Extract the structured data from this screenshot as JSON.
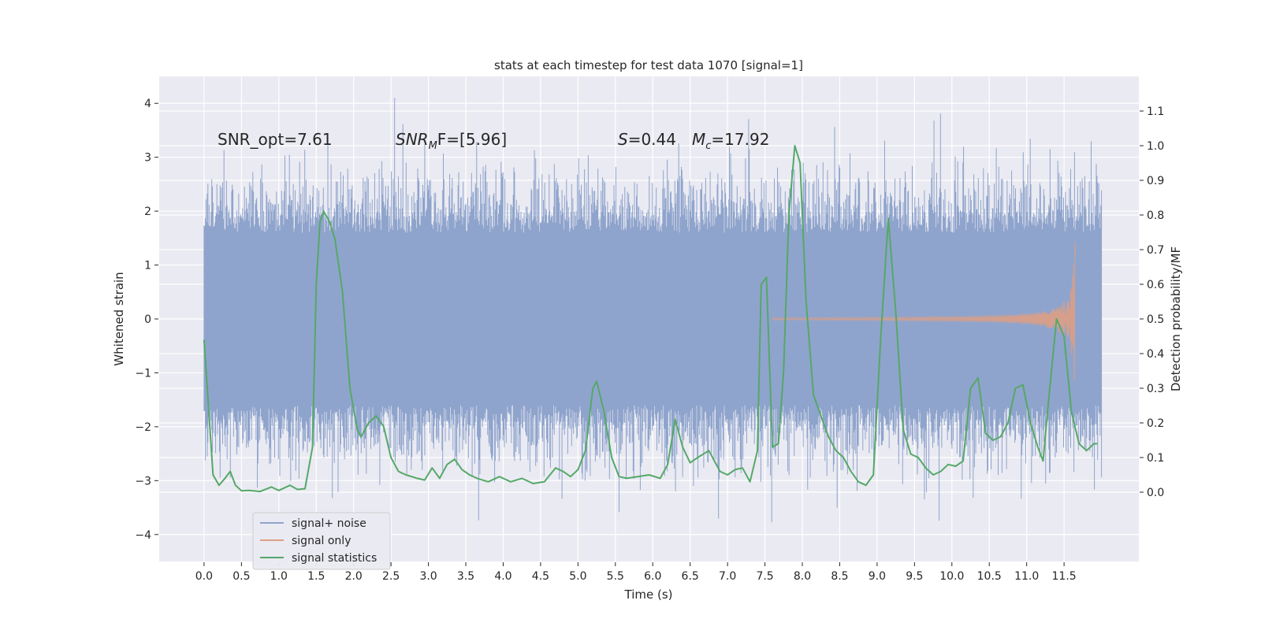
{
  "chart_data": {
    "type": "line",
    "title": "stats at each timestep for test data 1070 [signal=1]",
    "xlabel": "Time (s)",
    "ylabel_left": "Whitened strain",
    "ylabel_right": "Detection probability/MF",
    "xlim": [
      -0.6,
      12.5
    ],
    "ylim_left": [
      -4.5,
      4.5
    ],
    "ylim_right": [
      -0.2,
      1.2
    ],
    "x_ticks": [
      0.0,
      0.5,
      1.0,
      1.5,
      2.0,
      2.5,
      3.0,
      3.5,
      4.0,
      4.5,
      5.0,
      5.5,
      6.0,
      6.5,
      7.0,
      7.5,
      8.0,
      8.5,
      9.0,
      9.5,
      10.0,
      10.5,
      11.0,
      11.5
    ],
    "x_tick_labels": [
      "0.0",
      "0.5",
      "1.0",
      "1.5",
      "2.0",
      "2.5",
      "3.0",
      "3.5",
      "4.0",
      "4.5",
      "5.0",
      "5.5",
      "6.0",
      "6.5",
      "7.0",
      "7.5",
      "8.0",
      "8.5",
      "9.0",
      "9.5",
      "10.0",
      "10.5",
      "11.0",
      "11.5"
    ],
    "y_left_ticks": [
      -4,
      -3,
      -2,
      -1,
      0,
      1,
      2,
      3,
      4
    ],
    "y_left_tick_labels": [
      "−4",
      "−3",
      "−2",
      "−1",
      "0",
      "1",
      "2",
      "3",
      "4"
    ],
    "y_right_ticks": [
      0.0,
      0.1,
      0.2,
      0.3,
      0.4,
      0.5,
      0.6,
      0.7,
      0.8,
      0.9,
      1.0,
      1.1
    ],
    "y_right_tick_labels": [
      "0.0",
      "0.1",
      "0.2",
      "0.3",
      "0.4",
      "0.5",
      "0.6",
      "0.7",
      "0.8",
      "0.9",
      "1.0",
      "1.1"
    ],
    "noise_envelope": {
      "name": "signal+ noise",
      "t_start": 0.0,
      "t_end": 12.0,
      "typical_min": -1.6,
      "typical_max": 1.6,
      "peak_min": -4.0,
      "peak_max": 4.1
    },
    "signal_only": {
      "name": "signal only",
      "t_start": 7.6,
      "t_merge": 11.65,
      "amplitude_start": 0.02,
      "amplitude_peak": 1.75
    },
    "statistics": {
      "name": "signal statistics",
      "x": [
        0.0,
        0.12,
        0.2,
        0.28,
        0.35,
        0.42,
        0.5,
        0.6,
        0.75,
        0.9,
        1.0,
        1.15,
        1.25,
        1.35,
        1.45,
        1.5,
        1.55,
        1.6,
        1.68,
        1.75,
        1.85,
        1.95,
        2.05,
        2.1,
        2.2,
        2.3,
        2.4,
        2.5,
        2.6,
        2.7,
        2.85,
        2.95,
        3.05,
        3.15,
        3.25,
        3.35,
        3.45,
        3.55,
        3.65,
        3.8,
        3.95,
        4.1,
        4.25,
        4.4,
        4.55,
        4.7,
        4.8,
        4.9,
        5.0,
        5.1,
        5.2,
        5.25,
        5.35,
        5.45,
        5.55,
        5.65,
        5.8,
        5.95,
        6.1,
        6.2,
        6.3,
        6.4,
        6.5,
        6.6,
        6.75,
        6.9,
        7.0,
        7.1,
        7.2,
        7.3,
        7.4,
        7.45,
        7.52,
        7.6,
        7.68,
        7.75,
        7.82,
        7.9,
        7.97,
        8.05,
        8.15,
        8.25,
        8.35,
        8.45,
        8.55,
        8.65,
        8.75,
        8.85,
        8.95,
        9.05,
        9.15,
        9.25,
        9.35,
        9.45,
        9.55,
        9.65,
        9.75,
        9.85,
        9.95,
        10.05,
        10.15,
        10.25,
        10.35,
        10.45,
        10.55,
        10.65,
        10.75,
        10.85,
        10.95,
        11.05,
        11.15,
        11.22,
        11.3,
        11.4,
        11.5,
        11.6,
        11.7,
        11.8,
        11.9,
        11.95
      ],
      "y": [
        0.44,
        0.05,
        0.02,
        0.04,
        0.06,
        0.02,
        0.004,
        0.005,
        0.002,
        0.015,
        0.005,
        0.02,
        0.008,
        0.01,
        0.13,
        0.6,
        0.78,
        0.81,
        0.78,
        0.73,
        0.58,
        0.3,
        0.18,
        0.16,
        0.2,
        0.22,
        0.19,
        0.1,
        0.06,
        0.05,
        0.04,
        0.035,
        0.07,
        0.04,
        0.08,
        0.095,
        0.065,
        0.05,
        0.04,
        0.03,
        0.045,
        0.03,
        0.04,
        0.025,
        0.03,
        0.07,
        0.06,
        0.045,
        0.065,
        0.12,
        0.3,
        0.32,
        0.23,
        0.1,
        0.045,
        0.04,
        0.045,
        0.05,
        0.04,
        0.08,
        0.21,
        0.13,
        0.085,
        0.1,
        0.12,
        0.06,
        0.05,
        0.065,
        0.07,
        0.03,
        0.12,
        0.6,
        0.62,
        0.13,
        0.14,
        0.35,
        0.8,
        1.0,
        0.95,
        0.55,
        0.28,
        0.22,
        0.16,
        0.12,
        0.1,
        0.06,
        0.03,
        0.02,
        0.05,
        0.45,
        0.79,
        0.52,
        0.18,
        0.11,
        0.1,
        0.07,
        0.05,
        0.06,
        0.08,
        0.075,
        0.09,
        0.3,
        0.33,
        0.17,
        0.15,
        0.16,
        0.2,
        0.3,
        0.31,
        0.2,
        0.13,
        0.09,
        0.28,
        0.5,
        0.45,
        0.23,
        0.14,
        0.12,
        0.14,
        0.14
      ]
    },
    "annotations": {
      "snr_opt": "SNR_opt=7.61",
      "snr_mf_sym": "SNR",
      "snr_mf_sub": "M",
      "snr_mf_rest": "F=[5.96]",
      "s_sym": "S",
      "s_val": "=0.44",
      "mc_sym": "M",
      "mc_sub": "c",
      "mc_val": "=17.92"
    },
    "legend": {
      "position": "lower-left",
      "entries": [
        "signal+ noise",
        "signal only",
        "signal statistics"
      ]
    },
    "colors": {
      "noise": "#8fa4cc",
      "signal": "#dd9f85",
      "statistics": "#55a868",
      "background": "#eaeaf2",
      "grid": "#ffffff"
    },
    "grid": true
  }
}
